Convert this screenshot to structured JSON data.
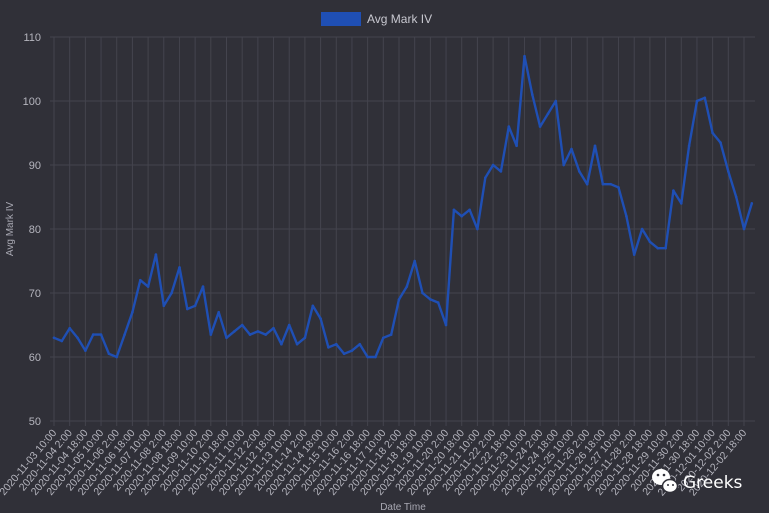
{
  "chart_data": {
    "type": "line",
    "title": "",
    "xlabel": "Date Time",
    "ylabel": "Avg Mark IV",
    "ylim": [
      50,
      110
    ],
    "y_ticks": [
      50,
      60,
      70,
      80,
      90,
      100,
      110
    ],
    "grid": true,
    "legend_position": "top-center",
    "colors": {
      "series": "#1f4fb4",
      "background": "#303038",
      "grid": "#44444e",
      "text": "#b5b5be"
    },
    "x_tick_labels": [
      "2020-11-03 10:00",
      "2020-11-04 2:00",
      "2020-11-04 18:00",
      "2020-11-05 10:00",
      "2020-11-06 2:00",
      "2020-11-06 18:00",
      "2020-11-07 10:00",
      "2020-11-08 2:00",
      "2020-11-08 18:00",
      "2020-11-09 10:00",
      "2020-11-10 2:00",
      "2020-11-10 18:00",
      "2020-11-11 10:00",
      "2020-11-12 2:00",
      "2020-11-12 18:00",
      "2020-11-13 10:00",
      "2020-11-14 2:00",
      "2020-11-14 18:00",
      "2020-11-15 10:00",
      "2020-11-16 2:00",
      "2020-11-16 18:00",
      "2020-11-17 10:00",
      "2020-11-18 2:00",
      "2020-11-18 18:00",
      "2020-11-19 10:00",
      "2020-11-20 2:00",
      "2020-11-20 18:00",
      "2020-11-21 10:00",
      "2020-11-22 2:00",
      "2020-11-22 18:00",
      "2020-11-23 10:00",
      "2020-11-24 2:00",
      "2020-11-24 18:00",
      "2020-11-25 10:00",
      "2020-11-26 2:00",
      "2020-11-26 18:00",
      "2020-11-27 10:00",
      "2020-11-28 2:00",
      "2020-11-28 18:00",
      "2020-11-29 10:00",
      "2020-11-30 2:00",
      "2020-11-30 18:00",
      "2020-12-01 10:00",
      "2020-12-02 2:00",
      "2020-12-02 18:00"
    ],
    "series": [
      {
        "name": "Avg Mark IV",
        "x": [
          "2020-11-03 10:00",
          "2020-11-03 18:00",
          "2020-11-04 2:00",
          "2020-11-04 10:00",
          "2020-11-04 18:00",
          "2020-11-05 2:00",
          "2020-11-05 10:00",
          "2020-11-05 18:00",
          "2020-11-06 2:00",
          "2020-11-06 10:00",
          "2020-11-06 18:00",
          "2020-11-07 2:00",
          "2020-11-07 10:00",
          "2020-11-07 18:00",
          "2020-11-08 2:00",
          "2020-11-08 10:00",
          "2020-11-08 18:00",
          "2020-11-09 2:00",
          "2020-11-09 10:00",
          "2020-11-09 18:00",
          "2020-11-10 2:00",
          "2020-11-10 10:00",
          "2020-11-10 18:00",
          "2020-11-11 2:00",
          "2020-11-11 10:00",
          "2020-11-11 18:00",
          "2020-11-12 2:00",
          "2020-11-12 10:00",
          "2020-11-12 18:00",
          "2020-11-13 2:00",
          "2020-11-13 10:00",
          "2020-11-13 18:00",
          "2020-11-14 2:00",
          "2020-11-14 10:00",
          "2020-11-14 18:00",
          "2020-11-15 2:00",
          "2020-11-15 10:00",
          "2020-11-15 18:00",
          "2020-11-16 2:00",
          "2020-11-16 10:00",
          "2020-11-16 18:00",
          "2020-11-17 2:00",
          "2020-11-17 10:00",
          "2020-11-17 18:00",
          "2020-11-18 2:00",
          "2020-11-18 10:00",
          "2020-11-18 18:00",
          "2020-11-19 2:00",
          "2020-11-19 10:00",
          "2020-11-19 18:00",
          "2020-11-20 2:00",
          "2020-11-20 10:00",
          "2020-11-20 18:00",
          "2020-11-21 2:00",
          "2020-11-21 10:00",
          "2020-11-21 18:00",
          "2020-11-22 2:00",
          "2020-11-22 10:00",
          "2020-11-22 18:00",
          "2020-11-23 2:00",
          "2020-11-23 10:00",
          "2020-11-23 18:00",
          "2020-11-24 2:00",
          "2020-11-24 10:00",
          "2020-11-24 18:00",
          "2020-11-25 2:00",
          "2020-11-25 10:00",
          "2020-11-25 18:00",
          "2020-11-26 2:00",
          "2020-11-26 10:00",
          "2020-11-26 18:00",
          "2020-11-27 2:00",
          "2020-11-27 10:00",
          "2020-11-27 18:00",
          "2020-11-28 2:00",
          "2020-11-28 10:00",
          "2020-11-28 18:00",
          "2020-11-29 2:00",
          "2020-11-29 10:00",
          "2020-11-29 18:00",
          "2020-11-30 2:00",
          "2020-11-30 10:00",
          "2020-11-30 18:00",
          "2020-12-01 2:00",
          "2020-12-01 10:00",
          "2020-12-01 18:00",
          "2020-12-02 2:00",
          "2020-12-02 10:00",
          "2020-12-02 18:00",
          "2020-12-03 2:00"
        ],
        "values": [
          63.0,
          62.5,
          64.5,
          63.0,
          61.0,
          63.5,
          63.5,
          60.5,
          60.0,
          63.5,
          67.0,
          72.0,
          71.0,
          76.0,
          68.0,
          70.0,
          74.0,
          67.5,
          68.0,
          71.0,
          63.5,
          67.0,
          63.0,
          64.0,
          65.0,
          63.5,
          64.0,
          63.5,
          64.5,
          62.0,
          65.0,
          62.0,
          63.0,
          68.0,
          66.0,
          61.5,
          62.0,
          60.5,
          61.0,
          62.0,
          60.0,
          60.0,
          63.0,
          63.5,
          69.0,
          71.0,
          75.0,
          70.0,
          69.0,
          68.5,
          65.0,
          83.0,
          82.0,
          83.0,
          80.0,
          88.0,
          90.0,
          89.0,
          96.0,
          93.0,
          107.0,
          101.0,
          96.0,
          98.0,
          100.0,
          90.0,
          92.5,
          89.0,
          87.0,
          93.0,
          87.0,
          87.0,
          86.5,
          82.0,
          76.0,
          80.0,
          78.0,
          77.0,
          77.0,
          86.0,
          84.0,
          93.0,
          100.0,
          100.5,
          95.0,
          93.5,
          89.0,
          85.0,
          80.0,
          84.0
        ]
      }
    ]
  },
  "watermark": {
    "text": "Greeks",
    "icon": "wechat-icon"
  }
}
